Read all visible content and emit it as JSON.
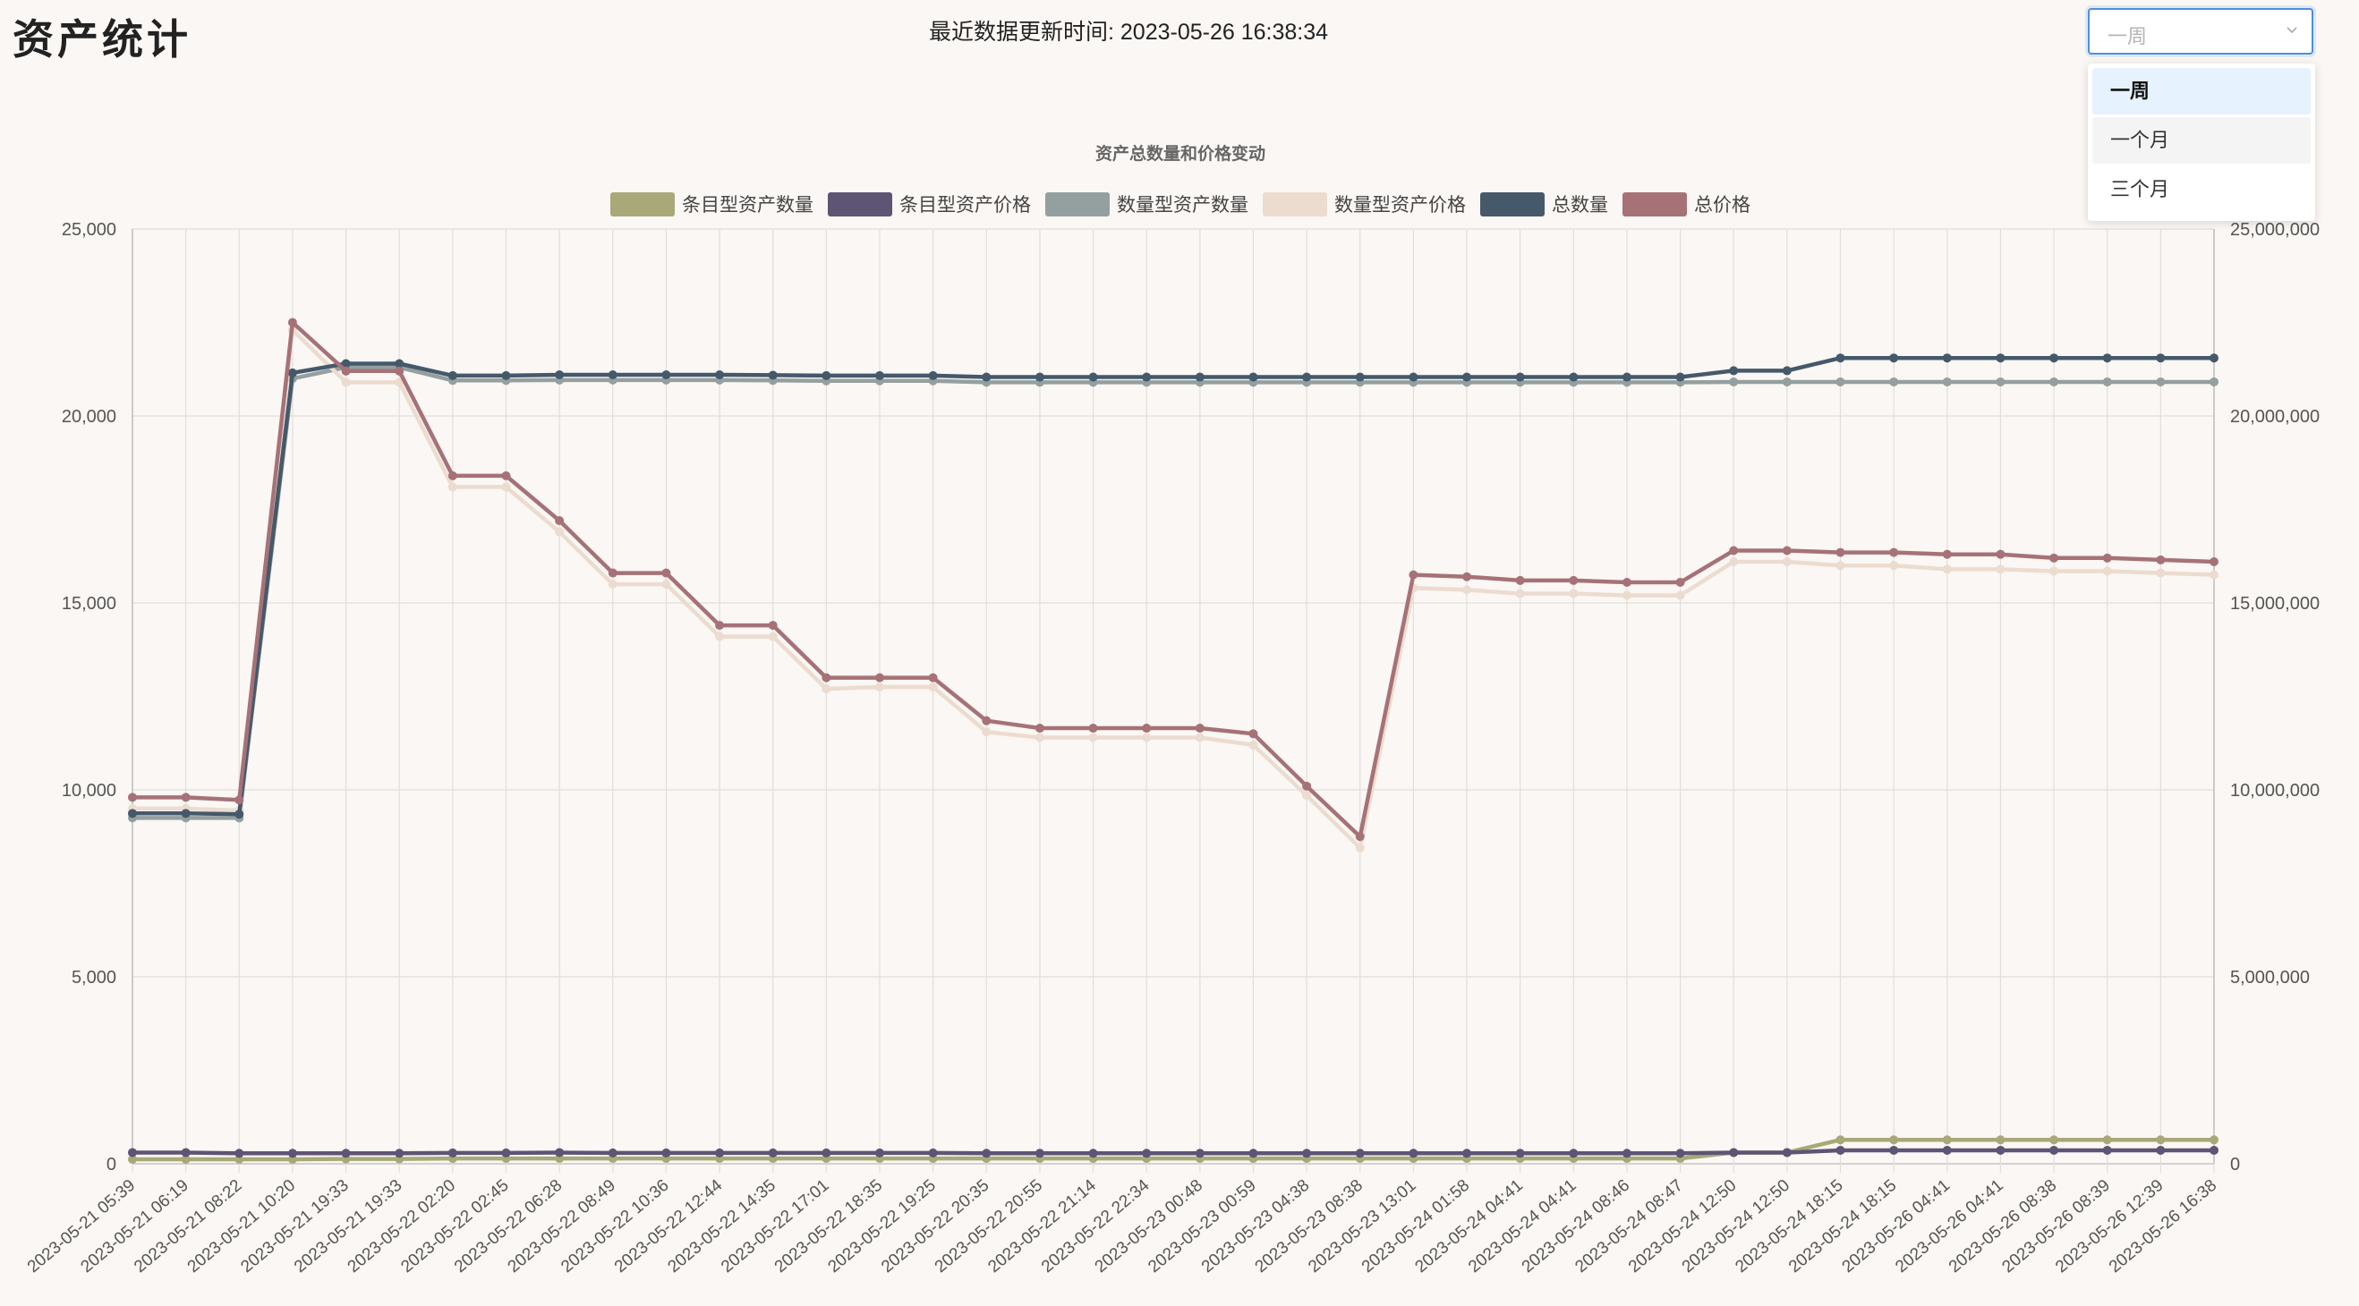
{
  "page": {
    "title": "资产统计",
    "update_label": "最近数据更新时间: 2023-05-26 16:38:34"
  },
  "range_select": {
    "value": "一周",
    "options": [
      "一周",
      "一个月",
      "三个月"
    ],
    "selected_index": 0,
    "hover_index": 1
  },
  "chart_data": {
    "type": "line",
    "title": "资产总数量和价格变动",
    "x": [
      "2023-05-21 05:39",
      "2023-05-21 06:19",
      "2023-05-21 08:22",
      "2023-05-21 10:20",
      "2023-05-21 19:33",
      "2023-05-21 19:33",
      "2023-05-22 02:20",
      "2023-05-22 02:45",
      "2023-05-22 06:28",
      "2023-05-22 08:49",
      "2023-05-22 10:36",
      "2023-05-22 12:44",
      "2023-05-22 14:35",
      "2023-05-22 17:01",
      "2023-05-22 18:35",
      "2023-05-22 19:25",
      "2023-05-22 20:35",
      "2023-05-22 20:55",
      "2023-05-22 21:14",
      "2023-05-22 22:34",
      "2023-05-23 00:48",
      "2023-05-23 00:59",
      "2023-05-23 04:38",
      "2023-05-23 08:38",
      "2023-05-23 13:01",
      "2023-05-24 01:58",
      "2023-05-24 04:41",
      "2023-05-24 04:41",
      "2023-05-24 08:46",
      "2023-05-24 08:47",
      "2023-05-24 12:50",
      "2023-05-24 12:50",
      "2023-05-24 18:15",
      "2023-05-24 18:15",
      "2023-05-26 04:41",
      "2023-05-26 04:41",
      "2023-05-26 08:38",
      "2023-05-26 08:39",
      "2023-05-26 12:39",
      "2023-05-26 16:38"
    ],
    "y_left": {
      "min": 0,
      "max": 25000,
      "ticks": [
        "0",
        "5,000",
        "10,000",
        "15,000",
        "20,000",
        "25,000"
      ]
    },
    "y_right": {
      "min": 0,
      "max": 25000000,
      "ticks": [
        "0",
        "5,000,000",
        "10,000,000",
        "15,000,000",
        "20,000,000",
        "25,000,000"
      ]
    },
    "grid": true,
    "legend_position": "top",
    "series": [
      {
        "name": "条目型资产数量",
        "color": "#a8a878",
        "axis": "left",
        "values": [
          120,
          120,
          120,
          120,
          130,
          130,
          140,
          140,
          140,
          140,
          140,
          140,
          140,
          140,
          140,
          140,
          140,
          140,
          140,
          140,
          140,
          140,
          140,
          140,
          140,
          140,
          140,
          140,
          140,
          140,
          300,
          300,
          640,
          640,
          640,
          640,
          640,
          640,
          640,
          640
        ]
      },
      {
        "name": "条目型资产价格",
        "color": "#5e5474",
        "axis": "right",
        "values": [
          300000,
          300000,
          280000,
          280000,
          280000,
          280000,
          290000,
          290000,
          300000,
          290000,
          290000,
          290000,
          290000,
          290000,
          290000,
          290000,
          280000,
          280000,
          280000,
          280000,
          280000,
          280000,
          280000,
          280000,
          280000,
          280000,
          280000,
          280000,
          280000,
          280000,
          300000,
          300000,
          360000,
          360000,
          360000,
          360000,
          360000,
          360000,
          360000,
          360000
        ]
      },
      {
        "name": "数量型资产数量",
        "color": "#949fa0",
        "axis": "left",
        "values": [
          9250,
          9250,
          9250,
          21000,
          21300,
          21300,
          20950,
          20950,
          20960,
          20960,
          20960,
          20960,
          20950,
          20940,
          20940,
          20940,
          20900,
          20900,
          20900,
          20900,
          20900,
          20900,
          20900,
          20900,
          20900,
          20900,
          20900,
          20900,
          20900,
          20900,
          20910,
          20910,
          20910,
          20910,
          20910,
          20910,
          20910,
          20910,
          20910,
          20910
        ]
      },
      {
        "name": "数量型资产价格",
        "color": "#ecdccf",
        "axis": "right",
        "values": [
          9500000,
          9500000,
          9450000,
          22300000,
          20900000,
          20900000,
          18100000,
          18100000,
          16900000,
          15500000,
          15500000,
          14100000,
          14100000,
          12700000,
          12750000,
          12750000,
          11550000,
          11400000,
          11400000,
          11400000,
          11400000,
          11200000,
          9850000,
          8450000,
          15400000,
          15350000,
          15250000,
          15250000,
          15200000,
          15200000,
          16100000,
          16100000,
          16000000,
          16000000,
          15900000,
          15900000,
          15850000,
          15850000,
          15800000,
          15750000
        ]
      },
      {
        "name": "总数量",
        "color": "#45596b",
        "axis": "left",
        "values": [
          9370,
          9370,
          9350,
          21150,
          21400,
          21400,
          21080,
          21080,
          21100,
          21100,
          21100,
          21100,
          21090,
          21080,
          21080,
          21080,
          21040,
          21040,
          21040,
          21040,
          21040,
          21040,
          21040,
          21040,
          21040,
          21040,
          21040,
          21040,
          21040,
          21040,
          21210,
          21210,
          21550,
          21550,
          21550,
          21550,
          21550,
          21550,
          21550,
          21550
        ]
      },
      {
        "name": "总价格",
        "color": "#a67277",
        "axis": "right",
        "values": [
          9800000,
          9800000,
          9730000,
          22500000,
          21200000,
          21200000,
          18400000,
          18400000,
          17200000,
          15800000,
          15800000,
          14400000,
          14400000,
          13000000,
          13000000,
          13000000,
          11850000,
          11650000,
          11650000,
          11650000,
          11650000,
          11500000,
          10100000,
          8750000,
          15750000,
          15700000,
          15600000,
          15600000,
          15550000,
          15550000,
          16400000,
          16400000,
          16350000,
          16350000,
          16300000,
          16300000,
          16200000,
          16200000,
          16150000,
          16100000
        ]
      }
    ]
  }
}
